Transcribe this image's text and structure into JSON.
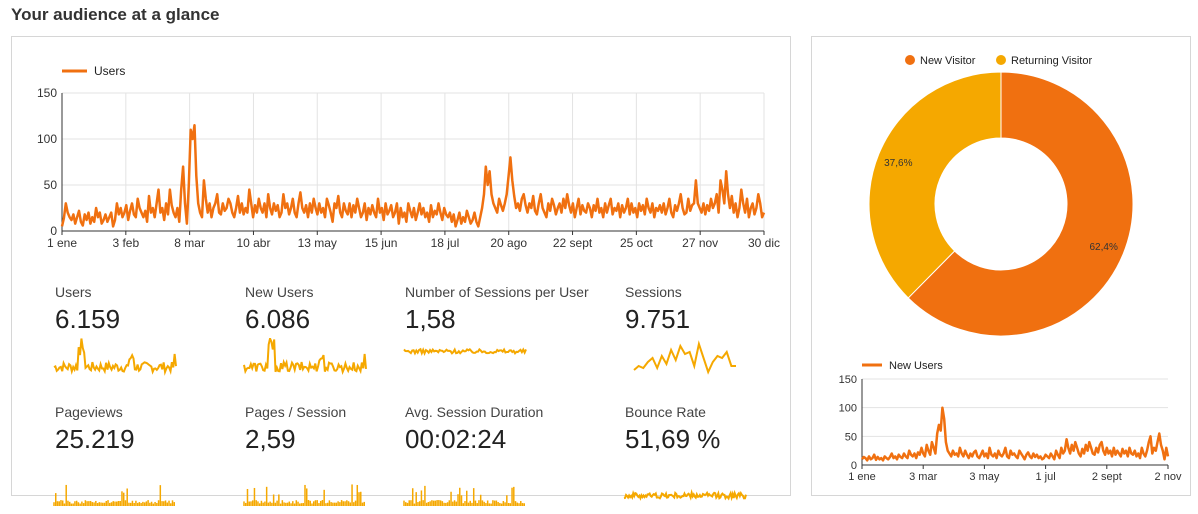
{
  "page": {
    "title": "Your audience at a glance"
  },
  "colors": {
    "primary": "#f07010",
    "secondary": "#f5a800",
    "grid": "#e3e3e3",
    "axis": "#333333"
  },
  "main_chart": {
    "legend": "Users",
    "y_ticks": [
      "0",
      "50",
      "100",
      "150"
    ],
    "x_ticks": [
      "1 ene",
      "3 feb",
      "8 mar",
      "10 abr",
      "13 may",
      "15 jun",
      "18 jul",
      "20 ago",
      "22 sept",
      "25 oct",
      "27 nov",
      "30 dic"
    ]
  },
  "metrics": [
    {
      "label": "Users",
      "value": "6.159",
      "spark": "spikes"
    },
    {
      "label": "New Users",
      "value": "6.086",
      "spark": "spikes"
    },
    {
      "label": "Number of Sessions per User",
      "value": "1,58",
      "spark": "flat"
    },
    {
      "label": "Sessions",
      "value": "9.751",
      "spark": "weekly"
    },
    {
      "label": "Pageviews",
      "value": "25.219",
      "spark": "bars"
    },
    {
      "label": "Pages / Session",
      "value": "2,59",
      "spark": "bars"
    },
    {
      "label": "Avg. Session Duration",
      "value": "00:02:24",
      "spark": "bars"
    },
    {
      "label": "Bounce Rate",
      "value": "51,69 %",
      "spark": "dense"
    }
  ],
  "donut_chart": {
    "legend": [
      "New Visitor",
      "Returning Visitor"
    ],
    "slices": [
      {
        "name": "New Visitor",
        "percent": 62.4,
        "label": "62,4%"
      },
      {
        "name": "Returning Visitor",
        "percent": 37.6,
        "label": "37,6%"
      }
    ]
  },
  "mini_chart": {
    "legend": "New Users",
    "y_ticks": [
      "0",
      "50",
      "100",
      "150"
    ],
    "x_ticks": [
      "1 ene",
      "3 mar",
      "3 may",
      "1 jul",
      "2 sept",
      "2 nov"
    ]
  },
  "chart_data": [
    {
      "type": "line",
      "title": "",
      "series": [
        {
          "name": "Users",
          "values": [
            5,
            14,
            30,
            20,
            15,
            12,
            18,
            8,
            15,
            22,
            10,
            6,
            18,
            12,
            20,
            8,
            15,
            10,
            25,
            15,
            20,
            8,
            12,
            18,
            10,
            15,
            20,
            5,
            12,
            30,
            18,
            25,
            15,
            20,
            28,
            12,
            22,
            30,
            18,
            15,
            35,
            25,
            20,
            15,
            22,
            10,
            38,
            20,
            25,
            15,
            30,
            45,
            20,
            25,
            12,
            30,
            18,
            45,
            28,
            20,
            15,
            25,
            10,
            45,
            70,
            30,
            8,
            50,
            110,
            100,
            115,
            60,
            30,
            20,
            15,
            55,
            35,
            20,
            30,
            15,
            25,
            30,
            40,
            20,
            18,
            30,
            22,
            25,
            35,
            30,
            20,
            15,
            25,
            38,
            20,
            30,
            18,
            25,
            20,
            45,
            30,
            15,
            28,
            20,
            35,
            25,
            20,
            30,
            15,
            40,
            25,
            18,
            30,
            22,
            28,
            15,
            20,
            40,
            25,
            30,
            18,
            25,
            35,
            20,
            15,
            30,
            42,
            25,
            20,
            28,
            15,
            30,
            20,
            35,
            25,
            18,
            30,
            20,
            25,
            15,
            35,
            28,
            20,
            10,
            30,
            25,
            38,
            20,
            15,
            30,
            22,
            18,
            30,
            15,
            28,
            20,
            35,
            25,
            15,
            20,
            30,
            12,
            25,
            18,
            28,
            20,
            15,
            35,
            20,
            25,
            12,
            30,
            18,
            22,
            28,
            15,
            20,
            30,
            8,
            25,
            15,
            20,
            10,
            30,
            22,
            15,
            25,
            12,
            20,
            30,
            18,
            25,
            15,
            20,
            10,
            28,
            15,
            22,
            18,
            30,
            20,
            12,
            25,
            18,
            15,
            20,
            10,
            18,
            5,
            12,
            20,
            8,
            15,
            10,
            22,
            15,
            8,
            12,
            20,
            10,
            5,
            15,
            25,
            40,
            70,
            50,
            65,
            40,
            30,
            25,
            20,
            35,
            28,
            22,
            30,
            40,
            60,
            80,
            55,
            38,
            25,
            30,
            22,
            35,
            40,
            28,
            20,
            30,
            25,
            38,
            22,
            18,
            30,
            40,
            25,
            20,
            15,
            30,
            22,
            35,
            28,
            18,
            25,
            30,
            20,
            35,
            25,
            40,
            28,
            20,
            30,
            15,
            25,
            35,
            18,
            28,
            22,
            20,
            30,
            25,
            15,
            28,
            22,
            35,
            20,
            25,
            15,
            30,
            20,
            28,
            35,
            18,
            25,
            22,
            30,
            15,
            28,
            20,
            25,
            35,
            18,
            30,
            20,
            25,
            15,
            30,
            22,
            28,
            18,
            35,
            25,
            20,
            30,
            15,
            25,
            22,
            28,
            20,
            30,
            18,
            25,
            35,
            20,
            15,
            28,
            22,
            30,
            40,
            25,
            18,
            20,
            35,
            22,
            28,
            30,
            55,
            30,
            25,
            20,
            30,
            18,
            28,
            22,
            35,
            25,
            30,
            40,
            20,
            55,
            45,
            30,
            65,
            40,
            25,
            38,
            20,
            30,
            15,
            25,
            45,
            30,
            20,
            35,
            15,
            25,
            30,
            18,
            25,
            40,
            30,
            15,
            20
          ]
        }
      ],
      "ylim": [
        0,
        150
      ],
      "x_ticks": [
        "1 ene",
        "3 feb",
        "8 mar",
        "10 abr",
        "13 may",
        "15 jun",
        "18 jul",
        "20 ago",
        "22 sept",
        "25 oct",
        "27 nov",
        "30 dic"
      ]
    },
    {
      "type": "pie",
      "title": "",
      "categories": [
        "New Visitor",
        "Returning Visitor"
      ],
      "values": [
        62.4,
        37.6
      ]
    },
    {
      "type": "line",
      "title": "",
      "series": [
        {
          "name": "New Users",
          "values": [
            10,
            14,
            12,
            8,
            15,
            10,
            12,
            18,
            9,
            14,
            10,
            12,
            8,
            15,
            12,
            10,
            14,
            20,
            12,
            15,
            10,
            18,
            14,
            12,
            20,
            15,
            12,
            25,
            18,
            15,
            20,
            12,
            22,
            18,
            30,
            20,
            15,
            35,
            25,
            18,
            40,
            30,
            20,
            55,
            70,
            60,
            100,
            80,
            40,
            25,
            20,
            15,
            25,
            18,
            20,
            15,
            30,
            20,
            15,
            25,
            18,
            12,
            20,
            15,
            22,
            25,
            15,
            12,
            18,
            25,
            15,
            20,
            12,
            30,
            18,
            15,
            20,
            12,
            25,
            18,
            15,
            20,
            30,
            15,
            12,
            25,
            18,
            20,
            15,
            12,
            25,
            20,
            15,
            10,
            18,
            22,
            15,
            12,
            20,
            14,
            18,
            12,
            15,
            10,
            12,
            18,
            15,
            12,
            20,
            15,
            10,
            25,
            18,
            12,
            30,
            20,
            25,
            45,
            30,
            20,
            35,
            25,
            40,
            30,
            20,
            15,
            28,
            20,
            35,
            25,
            40,
            30,
            20,
            18,
            30,
            22,
            35,
            40,
            25,
            18,
            30,
            20,
            25,
            15,
            30,
            18,
            25,
            20,
            15,
            28,
            20,
            25,
            15,
            30,
            20,
            18,
            25,
            15,
            20,
            12,
            30,
            20,
            15,
            25,
            40,
            50,
            20,
            30,
            25,
            40,
            55,
            35,
            25,
            10,
            30,
            15
          ]
        }
      ],
      "ylim": [
        0,
        150
      ],
      "x_ticks": [
        "1 ene",
        "3 mar",
        "3 may",
        "1 jul",
        "2 sept",
        "2 nov"
      ]
    }
  ]
}
